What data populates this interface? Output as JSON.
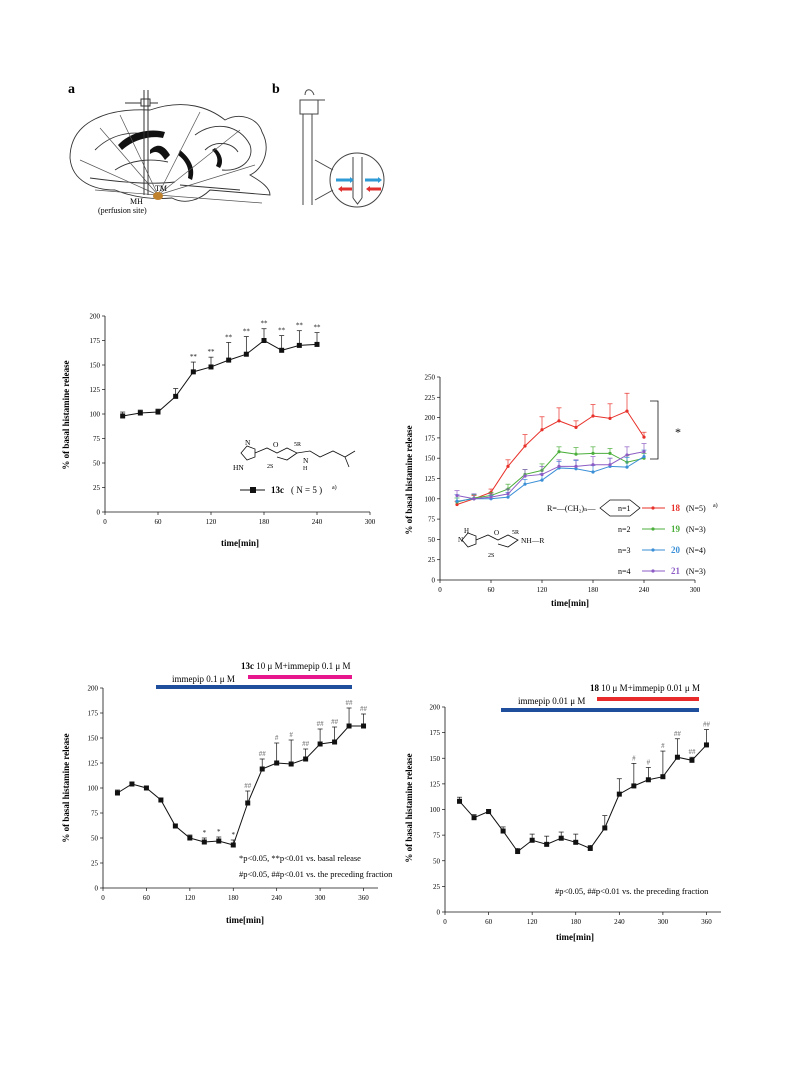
{
  "figure_top": {
    "panel_a_label": "a",
    "panel_b_label": "b",
    "tm_label": "TM",
    "mh_label": "MH",
    "perfusion_label": "(perfusion site)"
  },
  "chart_data": [
    {
      "id": "chart1",
      "type": "line",
      "x": [
        20,
        40,
        60,
        80,
        100,
        120,
        140,
        160,
        180,
        200,
        220,
        240
      ],
      "series": [
        {
          "name": "13c",
          "values": [
            98,
            101,
            102,
            118,
            143,
            148,
            155,
            161,
            175,
            165,
            170,
            171
          ],
          "errors": [
            4,
            3,
            3,
            8,
            10,
            10,
            18,
            18,
            12,
            15,
            15,
            12
          ],
          "sig": [
            "",
            "",
            "",
            "",
            "**",
            "**",
            "**",
            "**",
            "**",
            "**",
            "**",
            "**"
          ]
        }
      ],
      "xlabel": "time[min]",
      "ylabel": "% of basal histamine release",
      "xlim": [
        0,
        300
      ],
      "ylim": [
        0,
        200
      ],
      "xticks": [
        "0",
        "60",
        "120",
        "180",
        "240",
        "300"
      ],
      "yticks": [
        "0",
        "25",
        "50",
        "75",
        "100",
        "125",
        "150",
        "175",
        "200"
      ],
      "legend": {
        "compound": "13c",
        "n": "( N = 5 )",
        "sup": "a)"
      },
      "struct_labels": {
        "hn": "HN",
        "n": "N",
        "o": "O",
        "nh": "N",
        "h": "H",
        "r5": "5R",
        "s2": "2S"
      }
    },
    {
      "id": "chart2",
      "type": "line",
      "x": [
        20,
        40,
        60,
        80,
        100,
        120,
        140,
        160,
        180,
        200,
        220,
        240
      ],
      "series": [
        {
          "name": "18",
          "color": "#e8312a",
          "values": [
            93,
            100,
            108,
            140,
            165,
            185,
            196,
            188,
            202,
            199,
            208,
            176
          ],
          "errors": [
            4,
            4,
            4,
            8,
            14,
            16,
            16,
            8,
            14,
            18,
            22,
            6
          ]
        },
        {
          "name": "19",
          "color": "#4caf3c",
          "values": [
            96,
            101,
            104,
            112,
            130,
            135,
            158,
            155,
            156,
            156,
            145,
            150
          ],
          "errors": [
            5,
            4,
            4,
            6,
            6,
            8,
            6,
            8,
            8,
            6,
            8,
            6
          ]
        },
        {
          "name": "20",
          "color": "#3a8fd6",
          "values": [
            97,
            100,
            100,
            102,
            118,
            123,
            138,
            137,
            133,
            140,
            139,
            152
          ],
          "errors": [
            8,
            6,
            4,
            6,
            6,
            8,
            8,
            10,
            8,
            10,
            12,
            8
          ]
        },
        {
          "name": "21",
          "color": "#8c5cc4",
          "values": [
            104,
            100,
            102,
            106,
            128,
            130,
            140,
            140,
            142,
            142,
            154,
            158
          ],
          "errors": [
            6,
            6,
            4,
            6,
            8,
            10,
            8,
            8,
            10,
            8,
            10,
            10
          ]
        }
      ],
      "xlabel": "time[min]",
      "ylabel": "% of basal histamine release",
      "xlim": [
        0,
        300
      ],
      "ylim": [
        0,
        250
      ],
      "xticks": [
        "0",
        "60",
        "120",
        "180",
        "240",
        "300"
      ],
      "yticks": [
        "0",
        "25",
        "50",
        "75",
        "100",
        "125",
        "150",
        "175",
        "200",
        "225",
        "250"
      ],
      "star": "*",
      "r_formula": "R=—(CH₂)ₙ—",
      "legend": [
        {
          "n": "n=1",
          "compound": "18",
          "count": "(N=5)",
          "sup": "a)",
          "color": "#e8312a"
        },
        {
          "n": "n=2",
          "compound": "19",
          "count": "(N=3)",
          "sup": "",
          "color": "#4caf3c"
        },
        {
          "n": "n=3",
          "compound": "20",
          "count": "(N=4)",
          "sup": "",
          "color": "#3a8fd6"
        },
        {
          "n": "n=4",
          "compound": "21",
          "count": "(N=3)",
          "sup": "",
          "color": "#8c5cc4"
        }
      ],
      "struct_labels": {
        "h": "H",
        "n": "N",
        "o": "O",
        "nhr": "NH—R",
        "r5": "5R",
        "s2": "2S"
      }
    },
    {
      "id": "chart3",
      "type": "line",
      "x": [
        20,
        40,
        60,
        80,
        100,
        120,
        140,
        160,
        180,
        200,
        220,
        240,
        260,
        280,
        300,
        320,
        340,
        360
      ],
      "series": [
        {
          "name": "13c",
          "values": [
            95,
            104,
            100,
            88,
            62,
            50,
            46,
            47,
            43,
            85,
            119,
            125,
            124,
            129,
            144,
            146,
            162,
            162
          ],
          "errors": [
            3,
            2,
            2,
            2,
            2,
            3,
            4,
            4,
            5,
            12,
            10,
            20,
            24,
            10,
            15,
            15,
            18,
            12
          ],
          "sig": [
            "",
            "",
            "",
            "",
            "",
            "",
            "*",
            "*",
            "*",
            "##",
            "##",
            "#",
            "#",
            "##",
            "##",
            "##",
            "##",
            "##"
          ]
        }
      ],
      "xlabel": "time[min]",
      "ylabel": "% of basal histamine release",
      "xlim": [
        0,
        380
      ],
      "ylim": [
        0,
        200
      ],
      "xticks": [
        "0",
        "60",
        "120",
        "180",
        "240",
        "300",
        "360"
      ],
      "yticks": [
        "0",
        "25",
        "50",
        "75",
        "100",
        "125",
        "150",
        "175",
        "200"
      ],
      "bar_blue_label": "immepip 0.1 μ M",
      "bar_top_compound": "13c",
      "bar_top_label": " 10 μ M+immepip 0.1 μ M",
      "bar_top_color": "#e8168c",
      "bar_blue_color": "#1f4e9c",
      "note1": "*p<0.05, **p<0.01 vs. basal release",
      "note2": "#p<0.05, ##p<0.01 vs. the preceding fraction"
    },
    {
      "id": "chart4",
      "type": "line",
      "x": [
        20,
        40,
        60,
        80,
        100,
        120,
        140,
        160,
        180,
        200,
        220,
        240,
        260,
        280,
        300,
        320,
        340,
        360
      ],
      "series": [
        {
          "name": "18",
          "values": [
            108,
            92,
            98,
            79,
            59,
            70,
            66,
            72,
            68,
            62,
            82,
            115,
            123,
            129,
            132,
            151,
            148,
            163
          ],
          "errors": [
            4,
            3,
            2,
            4,
            3,
            6,
            8,
            6,
            8,
            3,
            12,
            15,
            22,
            12,
            25,
            18,
            3,
            15
          ],
          "sig": [
            "",
            "",
            "",
            "",
            "",
            "",
            "",
            "",
            "",
            "",
            "",
            "",
            "#",
            "#",
            "#",
            "##",
            "##",
            "##"
          ]
        }
      ],
      "xlabel": "time[min]",
      "ylabel": "% of basal histamine release",
      "xlim": [
        0,
        380
      ],
      "ylim": [
        0,
        200
      ],
      "xticks": [
        "0",
        "60",
        "120",
        "180",
        "240",
        "300",
        "360"
      ],
      "yticks": [
        "0",
        "25",
        "50",
        "75",
        "100",
        "125",
        "150",
        "175",
        "200"
      ],
      "bar_blue_label": "immepip 0.01 μ M",
      "bar_top_compound": "18",
      "bar_top_label": " 10 μ M+immepip 0.01 μ M",
      "bar_top_color": "#e82a2a",
      "bar_blue_color": "#1f4e9c",
      "note2": "#p<0.05, ##p<0.01 vs. the preceding fraction"
    }
  ]
}
